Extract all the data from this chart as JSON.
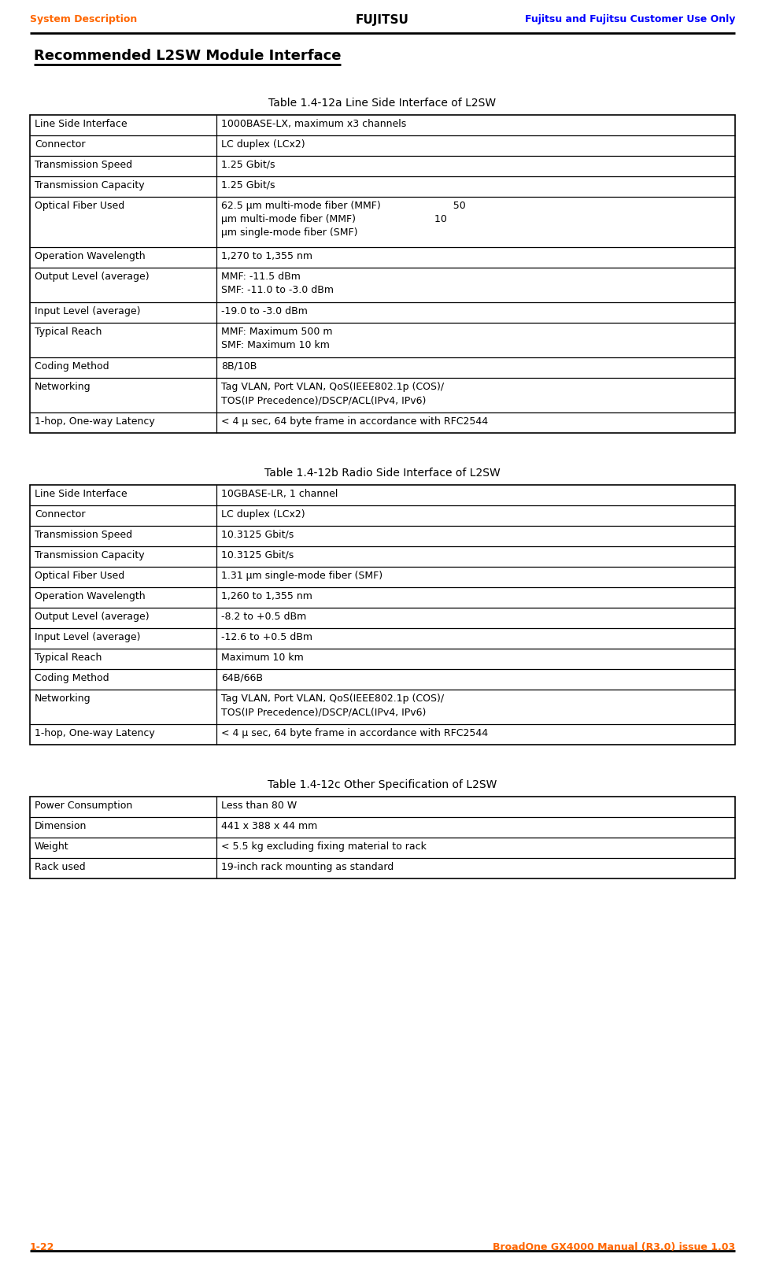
{
  "header_left": "System Description",
  "header_right": "Fujitsu and Fujitsu Customer Use Only",
  "footer_left": "1-22",
  "footer_right": "BroadOne GX4000 Manual (R3.0) issue 1.03",
  "section_title": "Recommended L2SW Module Interface",
  "table1_title": "Table 1.4-12a Line Side Interface of L2SW",
  "table1_rows": [
    [
      "Line Side Interface",
      "1000BASE-LX, maximum x3 channels"
    ],
    [
      "Connector",
      "LC duplex (LCx2)"
    ],
    [
      "Transmission Speed",
      "1.25 Gbit/s"
    ],
    [
      "Transmission Capacity",
      "1.25 Gbit/s"
    ],
    [
      "Optical Fiber Used",
      "62.5 μm multi-mode fiber (MMF)                       50\nμm multi-mode fiber (MMF)                         10\nμm single-mode fiber (SMF)"
    ],
    [
      "Operation Wavelength",
      "1,270 to 1,355 nm"
    ],
    [
      "Output Level (average)",
      "MMF: -11.5 dBm\nSMF: -11.0 to -3.0 dBm"
    ],
    [
      "Input Level (average)",
      "-19.0 to -3.0 dBm"
    ],
    [
      "Typical Reach",
      "MMF: Maximum 500 m\nSMF: Maximum 10 km"
    ],
    [
      "Coding Method",
      "8B/10B"
    ],
    [
      "Networking",
      "Tag VLAN, Port VLAN, QoS(IEEE802.1p (COS)/\nTOS(IP Precedence)/DSCP/ACL(IPv4, IPv6)"
    ],
    [
      "1-hop, One-way Latency",
      "< 4 μ sec, 64 byte frame in accordance with RFC2544"
    ]
  ],
  "table2_title": "Table 1.4-12b Radio Side Interface of L2SW",
  "table2_rows": [
    [
      "Line Side Interface",
      "10GBASE-LR, 1 channel"
    ],
    [
      "Connector",
      "LC duplex (LCx2)"
    ],
    [
      "Transmission Speed",
      "10.3125 Gbit/s"
    ],
    [
      "Transmission Capacity",
      "10.3125 Gbit/s"
    ],
    [
      "Optical Fiber Used",
      "1.31 μm single-mode fiber (SMF)"
    ],
    [
      "Operation Wavelength",
      "1,260 to 1,355 nm"
    ],
    [
      "Output Level (average)",
      "-8.2 to +0.5 dBm"
    ],
    [
      "Input Level (average)",
      "-12.6 to +0.5 dBm"
    ],
    [
      "Typical Reach",
      "Maximum 10 km"
    ],
    [
      "Coding Method",
      "64B/66B"
    ],
    [
      "Networking",
      "Tag VLAN, Port VLAN, QoS(IEEE802.1p (COS)/\nTOS(IP Precedence)/DSCP/ACL(IPv4, IPv6)"
    ],
    [
      "1-hop, One-way Latency",
      "< 4 μ sec, 64 byte frame in accordance with RFC2544"
    ]
  ],
  "table3_title": "Table 1.4-12c Other Specification of L2SW",
  "table3_rows": [
    [
      "Power Consumption",
      "Less than 80 W"
    ],
    [
      "Dimension",
      "441 x 388 x 44 mm"
    ],
    [
      "Weight",
      "< 5.5 kg excluding fixing material to rack"
    ],
    [
      "Rack used",
      "19-inch rack mounting as standard"
    ]
  ],
  "orange_color": "#FF6600",
  "blue_color": "#0000FF",
  "black_color": "#000000",
  "bg_color": "#FFFFFF"
}
